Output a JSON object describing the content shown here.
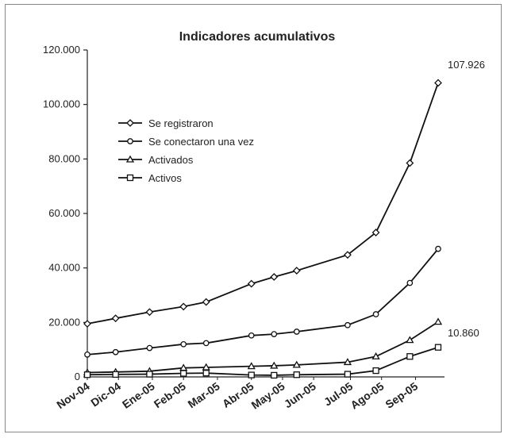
{
  "chart_data": {
    "type": "line",
    "title": "Indicadores acumulativos",
    "categories": [
      "Nov-04",
      "Dic-04",
      "Ene-05",
      "Feb-05",
      "Mar-05",
      "Abr-05",
      "May-05",
      "Jun-05",
      "Jul-05",
      "Ago-05",
      "Sep-05"
    ],
    "x": [
      0,
      0.5,
      1.1,
      1.7,
      2.1,
      2.9,
      3.3,
      3.7,
      4.6,
      5.1,
      5.7,
      6.2
    ],
    "series": [
      {
        "name": "Se registraron",
        "marker": "diamond",
        "values": [
          19500,
          21500,
          23800,
          25800,
          27500,
          34200,
          36700,
          39000,
          44800,
          53000,
          78500,
          107926
        ]
      },
      {
        "name": "Se conectaron una vez",
        "marker": "circle",
        "values": [
          8200,
          9100,
          10600,
          12000,
          12400,
          15200,
          15700,
          16600,
          19000,
          23000,
          34500,
          47000
        ]
      },
      {
        "name": "Activados",
        "marker": "triangle",
        "values": [
          1600,
          1800,
          2100,
          3300,
          3500,
          3900,
          4100,
          4400,
          5400,
          7500,
          13500,
          20200
        ]
      },
      {
        "name": "Activos",
        "marker": "square",
        "values": [
          800,
          900,
          1000,
          1300,
          1400,
          700,
          600,
          800,
          1000,
          2300,
          7500,
          10860
        ]
      }
    ],
    "ylim": [
      0,
      120000
    ],
    "yticks": [
      0,
      20000,
      40000,
      60000,
      80000,
      100000,
      120000
    ],
    "ytick_labels": [
      "0",
      "20.000",
      "40.000",
      "60.000",
      "80.000",
      "100.000",
      "120.000"
    ],
    "annotations": [
      "107.926",
      "10.860"
    ],
    "legend": "upper-left",
    "grid": false
  }
}
